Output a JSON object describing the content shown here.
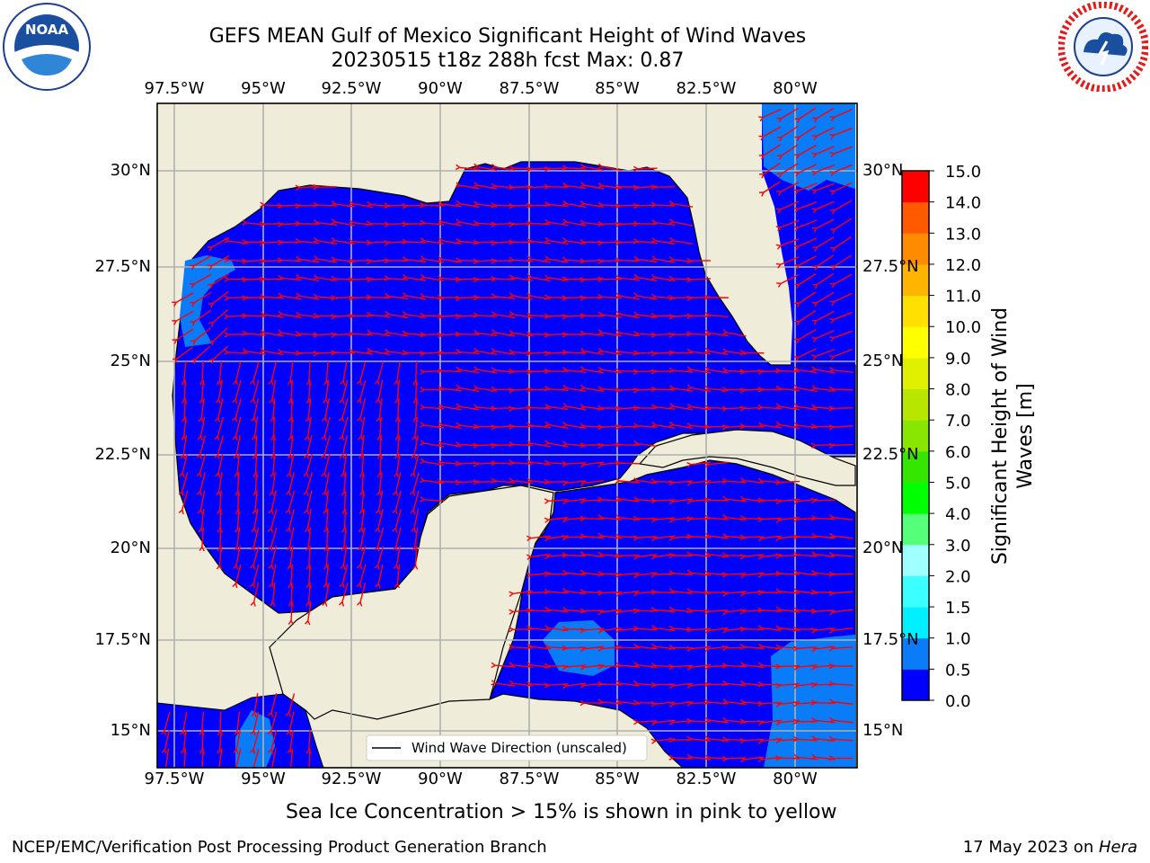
{
  "header": {
    "title_line1": "GEFS MEAN Gulf of Mexico Significant Height of Wind Waves",
    "title_line2": "20230515 t18z 288h fcst   Max: 0.87"
  },
  "logos": {
    "noaa_text": "NOAA",
    "noaa_ring_text": "NATIONAL OCEANIC AND ATMOSPHERIC ADMINISTRATION · U.S. DEPARTMENT OF COMMERCE",
    "nws_ring_text": "NATIONAL WEATHER SERVICE"
  },
  "map": {
    "lon_ticks": [
      "97.5°W",
      "95°W",
      "92.5°W",
      "90°W",
      "87.5°W",
      "85°W",
      "82.5°W",
      "80°W"
    ],
    "lat_ticks": [
      "30°N",
      "27.5°N",
      "25°N",
      "22.5°N",
      "20°N",
      "17.5°N",
      "15°N"
    ],
    "legend_label": "Wind Wave Direction (unscaled)",
    "colors": {
      "land": "#efedda",
      "wave_0_05": "#0000ff",
      "wave_05_10": "#0a7cf8",
      "arrow": "#ff0000",
      "grid": "#b0b0b0"
    }
  },
  "colorbar": {
    "label_line1": "Significant Height of Wind",
    "label_line2": "Waves [m]",
    "levels": [
      "0.0",
      "0.5",
      "1.0",
      "1.5",
      "2.0",
      "3.0",
      "4.0",
      "5.0",
      "6.0",
      "7.0",
      "8.0",
      "9.0",
      "10.0",
      "11.0",
      "12.0",
      "13.0",
      "14.0",
      "15.0"
    ],
    "colors": [
      "#0000ff",
      "#0a7cf8",
      "#00f0ff",
      "#3cffff",
      "#a0ffff",
      "#55ff7a",
      "#00ff00",
      "#35e600",
      "#88e600",
      "#b7e600",
      "#e0f000",
      "#ffff00",
      "#ffe000",
      "#ffb400",
      "#ff8c00",
      "#ff5a00",
      "#ff0000"
    ]
  },
  "notes": {
    "sea_ice": "Sea Ice Concentration > 15% is shown in pink to yellow"
  },
  "footer": {
    "left": "NCEP/EMC/Verification Post Processing Product Generation Branch",
    "date_prefix": "17 May 2023 on ",
    "date_machine": "Hera"
  }
}
